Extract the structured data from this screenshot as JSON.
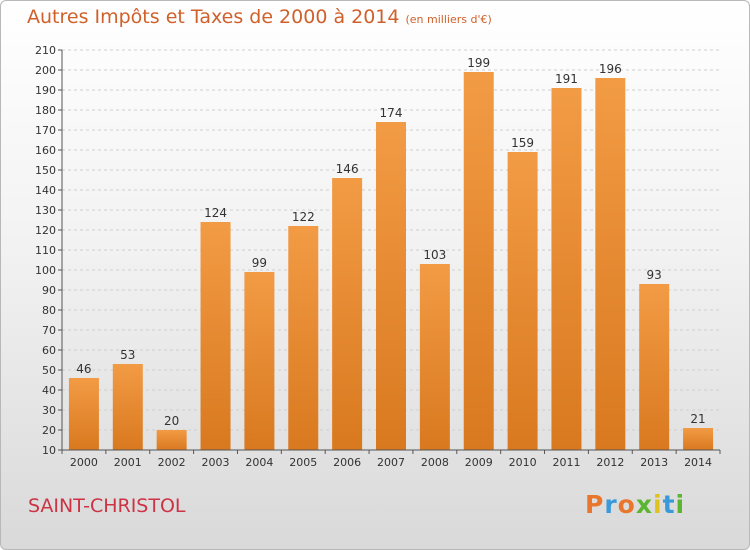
{
  "chart_data": {
    "type": "bar",
    "title": "Autres Impôts et Taxes de 2000 à 2014",
    "unit_note": "(en milliers d'€)",
    "categories": [
      "2000",
      "2001",
      "2002",
      "2003",
      "2004",
      "2005",
      "2006",
      "2007",
      "2008",
      "2009",
      "2010",
      "2011",
      "2012",
      "2013",
      "2014"
    ],
    "values": [
      46,
      53,
      20,
      124,
      99,
      122,
      146,
      174,
      103,
      199,
      159,
      191,
      196,
      93,
      21
    ],
    "ylim": [
      10,
      210
    ],
    "yticks": [
      10,
      20,
      30,
      40,
      50,
      60,
      70,
      80,
      90,
      100,
      110,
      120,
      130,
      140,
      150,
      160,
      170,
      180,
      190,
      200,
      210
    ],
    "grid": true,
    "bar_color": "#f29b45",
    "bar_color_dark": "#d9791f"
  },
  "commune": "SAINT-CHRISTOL",
  "logo": {
    "letters": [
      "P",
      "r",
      "o",
      "x",
      "i",
      "t",
      "i"
    ],
    "colors": [
      "#e8762c",
      "#3a9ad9",
      "#e8762c",
      "#5cb531",
      "#e0c21f",
      "#3a9ad9",
      "#5cb531"
    ]
  }
}
